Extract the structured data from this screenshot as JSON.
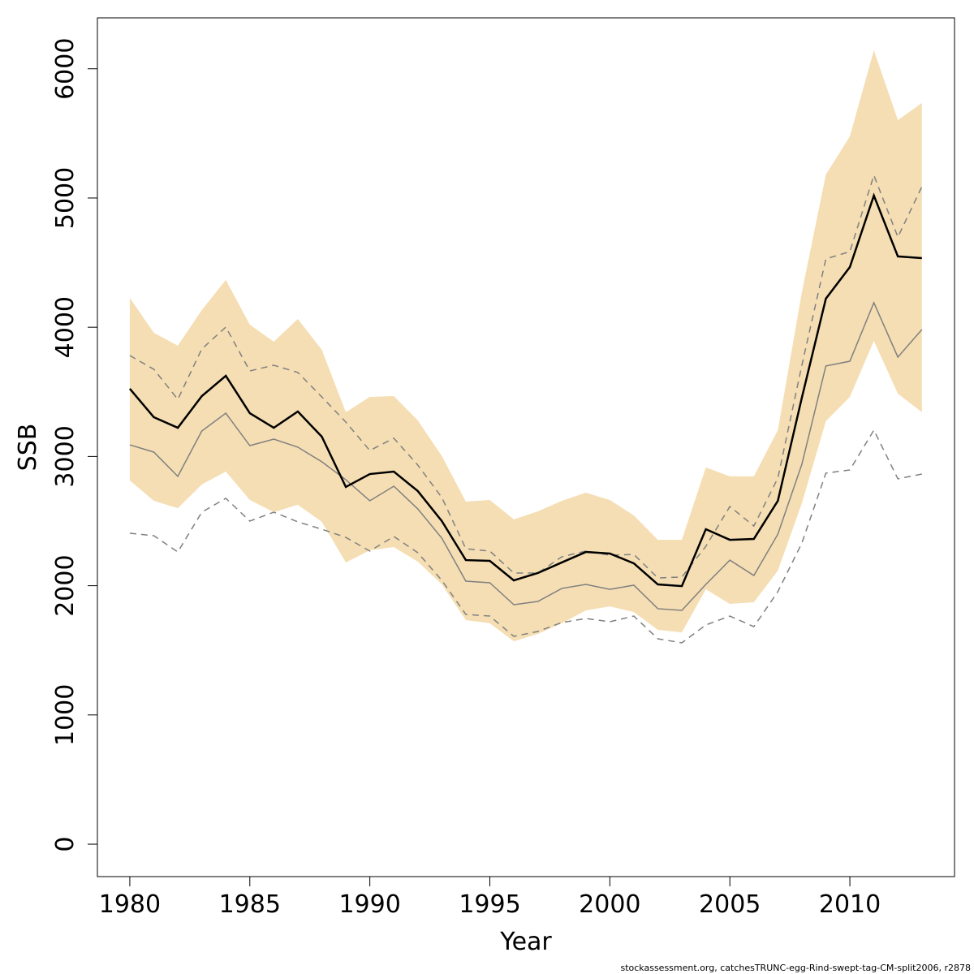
{
  "chart_data": {
    "type": "line",
    "xlabel": "Year",
    "ylabel": "SSB",
    "footnote": "stockassessment.org, catchesTRUNC-egg-Rind-swept-tag-CM-split2006, r2878",
    "x": [
      1980,
      1981,
      1982,
      1983,
      1984,
      1985,
      1986,
      1987,
      1988,
      1989,
      1990,
      1991,
      1992,
      1993,
      1994,
      1995,
      1996,
      1997,
      1998,
      1999,
      2000,
      2001,
      2002,
      2003,
      2004,
      2005,
      2006,
      2007,
      2008,
      2009,
      2010,
      2011,
      2012,
      2013
    ],
    "xlim": [
      1978.65,
      2014.36
    ],
    "xticks": [
      1980,
      1985,
      1990,
      1995,
      2000,
      2005,
      2010
    ],
    "ylim": [
      -251,
      6394
    ],
    "yticks": [
      0,
      1000,
      2000,
      3000,
      4000,
      5000,
      6000
    ],
    "band": {
      "color": "#f5deb3",
      "upper": [
        4227,
        3957,
        3857,
        4133,
        4366,
        4020,
        3888,
        4064,
        3825,
        3342,
        3461,
        3467,
        3279,
        3003,
        2651,
        2663,
        2513,
        2575,
        2657,
        2720,
        2663,
        2544,
        2355,
        2355,
        2915,
        2846,
        2846,
        3204,
        4271,
        5182,
        5477,
        6143,
        5603,
        5735
      ],
      "lower": [
        2814,
        2657,
        2600,
        2783,
        2883,
        2663,
        2569,
        2626,
        2494,
        2180,
        2274,
        2299,
        2186,
        2010,
        1734,
        1709,
        1570,
        1627,
        1709,
        1809,
        1840,
        1796,
        1658,
        1639,
        1972,
        1859,
        1872,
        2117,
        2638,
        3273,
        3461,
        3894,
        3486,
        3342
      ]
    },
    "series": [
      {
        "color": "#808080",
        "dash": true,
        "width": 1.5,
        "values": [
          3781,
          3675,
          3442,
          3832,
          4001,
          3662,
          3706,
          3650,
          3461,
          3266,
          3046,
          3141,
          2933,
          2682,
          2286,
          2268,
          2098,
          2098,
          2224,
          2268,
          2236,
          2242,
          2060,
          2067,
          2305,
          2613,
          2462,
          2833,
          3706,
          4529,
          4585,
          5176,
          4698,
          5088
        ]
      },
      {
        "color": "#808080",
        "dash": true,
        "width": 1.5,
        "values": [
          2406,
          2387,
          2261,
          2569,
          2676,
          2500,
          2569,
          2494,
          2437,
          2374,
          2268,
          2381,
          2255,
          2041,
          1778,
          1765,
          1608,
          1646,
          1715,
          1746,
          1721,
          1765,
          1589,
          1558,
          1696,
          1765,
          1683,
          1954,
          2330,
          2871,
          2896,
          3204,
          2827,
          2864
        ]
      },
      {
        "color": "#808080",
        "dash": false,
        "width": 1.5,
        "values": [
          3090,
          3034,
          2846,
          3197,
          3335,
          3084,
          3134,
          3072,
          2959,
          2820,
          2657,
          2770,
          2594,
          2368,
          2035,
          2023,
          1853,
          1878,
          1979,
          2010,
          1972,
          2004,
          1822,
          1809,
          2010,
          2198,
          2079,
          2399,
          2940,
          3700,
          3737,
          4190,
          3769,
          3982
        ]
      },
      {
        "color": "#000000",
        "dash": false,
        "width": 2.5,
        "values": [
          3524,
          3304,
          3222,
          3467,
          3624,
          3335,
          3222,
          3348,
          3153,
          2764,
          2864,
          2883,
          2732,
          2500,
          2198,
          2192,
          2041,
          2098,
          2180,
          2261,
          2249,
          2173,
          2010,
          1997,
          2437,
          2355,
          2362,
          2657,
          3455,
          4221,
          4466,
          5019,
          4548,
          4535
        ]
      }
    ]
  }
}
